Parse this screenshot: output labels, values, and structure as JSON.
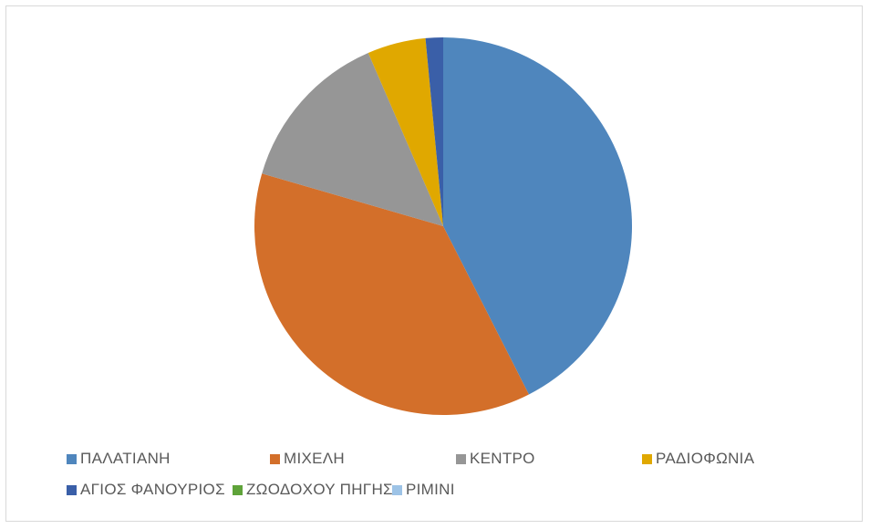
{
  "chart_data": {
    "type": "pie",
    "title": "",
    "legend_position": "bottom",
    "slices": [
      {
        "name": "ΠΑΛΑΤΙΑΝΗ",
        "value": 42.5,
        "color": "#4f86bd"
      },
      {
        "name": "ΜΙΧΕΛΗ",
        "value": 37.0,
        "color": "#d36f2a"
      },
      {
        "name": "ΚΕΝΤΡΟ",
        "value": 14.0,
        "color": "#969696"
      },
      {
        "name": "ΡΑΔΙΟΦΩΝΙΑ",
        "value": 5.0,
        "color": "#e0a800"
      },
      {
        "name": "ΑΓΙΟΣ ΦΑΝΟΥΡΙΟΣ",
        "value": 1.5,
        "color": "#3a5fa8"
      },
      {
        "name": "ΖΩΟΔΟΧΟΥ ΠΗΓΗΣ",
        "value": 0,
        "color": "#5fa33a"
      },
      {
        "name": "ΡΙΜΙΝΙ",
        "value": 0,
        "color": "#9dc3e6"
      }
    ]
  }
}
